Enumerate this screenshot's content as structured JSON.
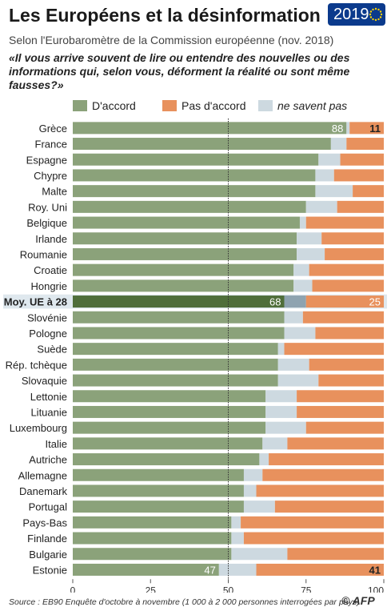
{
  "title": "Les Européens et la désinformation",
  "year_badge": {
    "text": "2019",
    "color": "#0b3a8c"
  },
  "subtitle": "Selon l'Eurobaromètre de la Commission européenne (nov. 2018)",
  "question": "«Il vous arrive souvent de lire ou entendre des nouvelles ou des informations qui, selon vous, déforment la réalité ou sont même fausses?»",
  "colors": {
    "agree": "#8ba27a",
    "agree_highlight": "#4f6e3a",
    "disagree": "#e8915d",
    "disagree_highlight": "#e8915d",
    "dontknow": "#cdd9e0",
    "dontknow_highlight": "#8ea3b0",
    "row_highlight": "#dfe8ee"
  },
  "source": "Source : EB90 Enquête d'octobre à novembre (1 000 à 2 000 personnes interrogées par pays)",
  "credit": "© AFP",
  "chart_data": {
    "type": "bar",
    "orientation": "horizontal",
    "stacked": true,
    "xlim": [
      0,
      100
    ],
    "xticks": [
      0,
      25,
      50,
      75,
      100
    ],
    "reference_line": 50,
    "highlight_category": "Moy. UE à 28",
    "categories": [
      "Grèce",
      "France",
      "Espagne",
      "Chypre",
      "Malte",
      "Roy. Uni",
      "Belgique",
      "Irlande",
      "Roumanie",
      "Croatie",
      "Hongrie",
      "Moy. UE à 28",
      "Slovénie",
      "Pologne",
      "Suède",
      "Rép. tchèque",
      "Slovaquie",
      "Lettonie",
      "Lituanie",
      "Luxembourg",
      "Italie",
      "Autriche",
      "Allemagne",
      "Danemark",
      "Portugal",
      "Pays-Bas",
      "Finlande",
      "Bulgarie",
      "Estonie"
    ],
    "series": [
      {
        "name": "D'accord",
        "key": "agree",
        "values": [
          88,
          83,
          79,
          78,
          78,
          75,
          73,
          72,
          72,
          71,
          71,
          68,
          68,
          68,
          66,
          66,
          66,
          62,
          62,
          62,
          61,
          60,
          55,
          55,
          55,
          51,
          51,
          51,
          47
        ]
      },
      {
        "name": "Pas d'accord",
        "key": "disagree",
        "values": [
          11,
          12,
          14,
          16,
          10,
          15,
          25,
          20,
          19,
          24,
          23,
          25,
          26,
          22,
          32,
          24,
          21,
          28,
          28,
          25,
          31,
          37,
          39,
          41,
          35,
          46,
          45,
          31,
          41
        ]
      },
      {
        "name": "ne savent pas",
        "key": "dontknow",
        "values": [
          1,
          5,
          7,
          6,
          12,
          10,
          2,
          8,
          9,
          5,
          6,
          7,
          6,
          10,
          2,
          10,
          13,
          10,
          10,
          13,
          8,
          3,
          6,
          4,
          10,
          3,
          4,
          18,
          12
        ]
      }
    ],
    "data_labels": {
      "Grèce": {
        "agree": 88,
        "disagree": 11
      },
      "Moy. UE à 28": {
        "agree": 68,
        "disagree": 25
      },
      "Estonie": {
        "agree": 47,
        "disagree": 41
      }
    }
  }
}
